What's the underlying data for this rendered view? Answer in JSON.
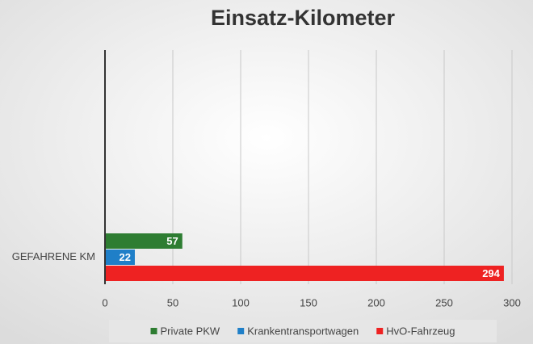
{
  "chart_data": {
    "type": "bar",
    "orientation": "horizontal",
    "title": "Einsatz-Kilometer",
    "categories": [
      "GEFAHRENE KM"
    ],
    "series": [
      {
        "name": "Private PKW",
        "color": "#2e7d32",
        "values": [
          57
        ]
      },
      {
        "name": "Krankentransportwagen",
        "color": "#1f7fc8",
        "values": [
          22
        ]
      },
      {
        "name": "HvO-Fahrzeug",
        "color": "#ee2222",
        "values": [
          294
        ]
      }
    ],
    "xlim": [
      0,
      300
    ],
    "xticks": [
      0,
      50,
      100,
      150,
      200,
      250,
      300
    ],
    "grid": true,
    "legend": "bottom"
  }
}
